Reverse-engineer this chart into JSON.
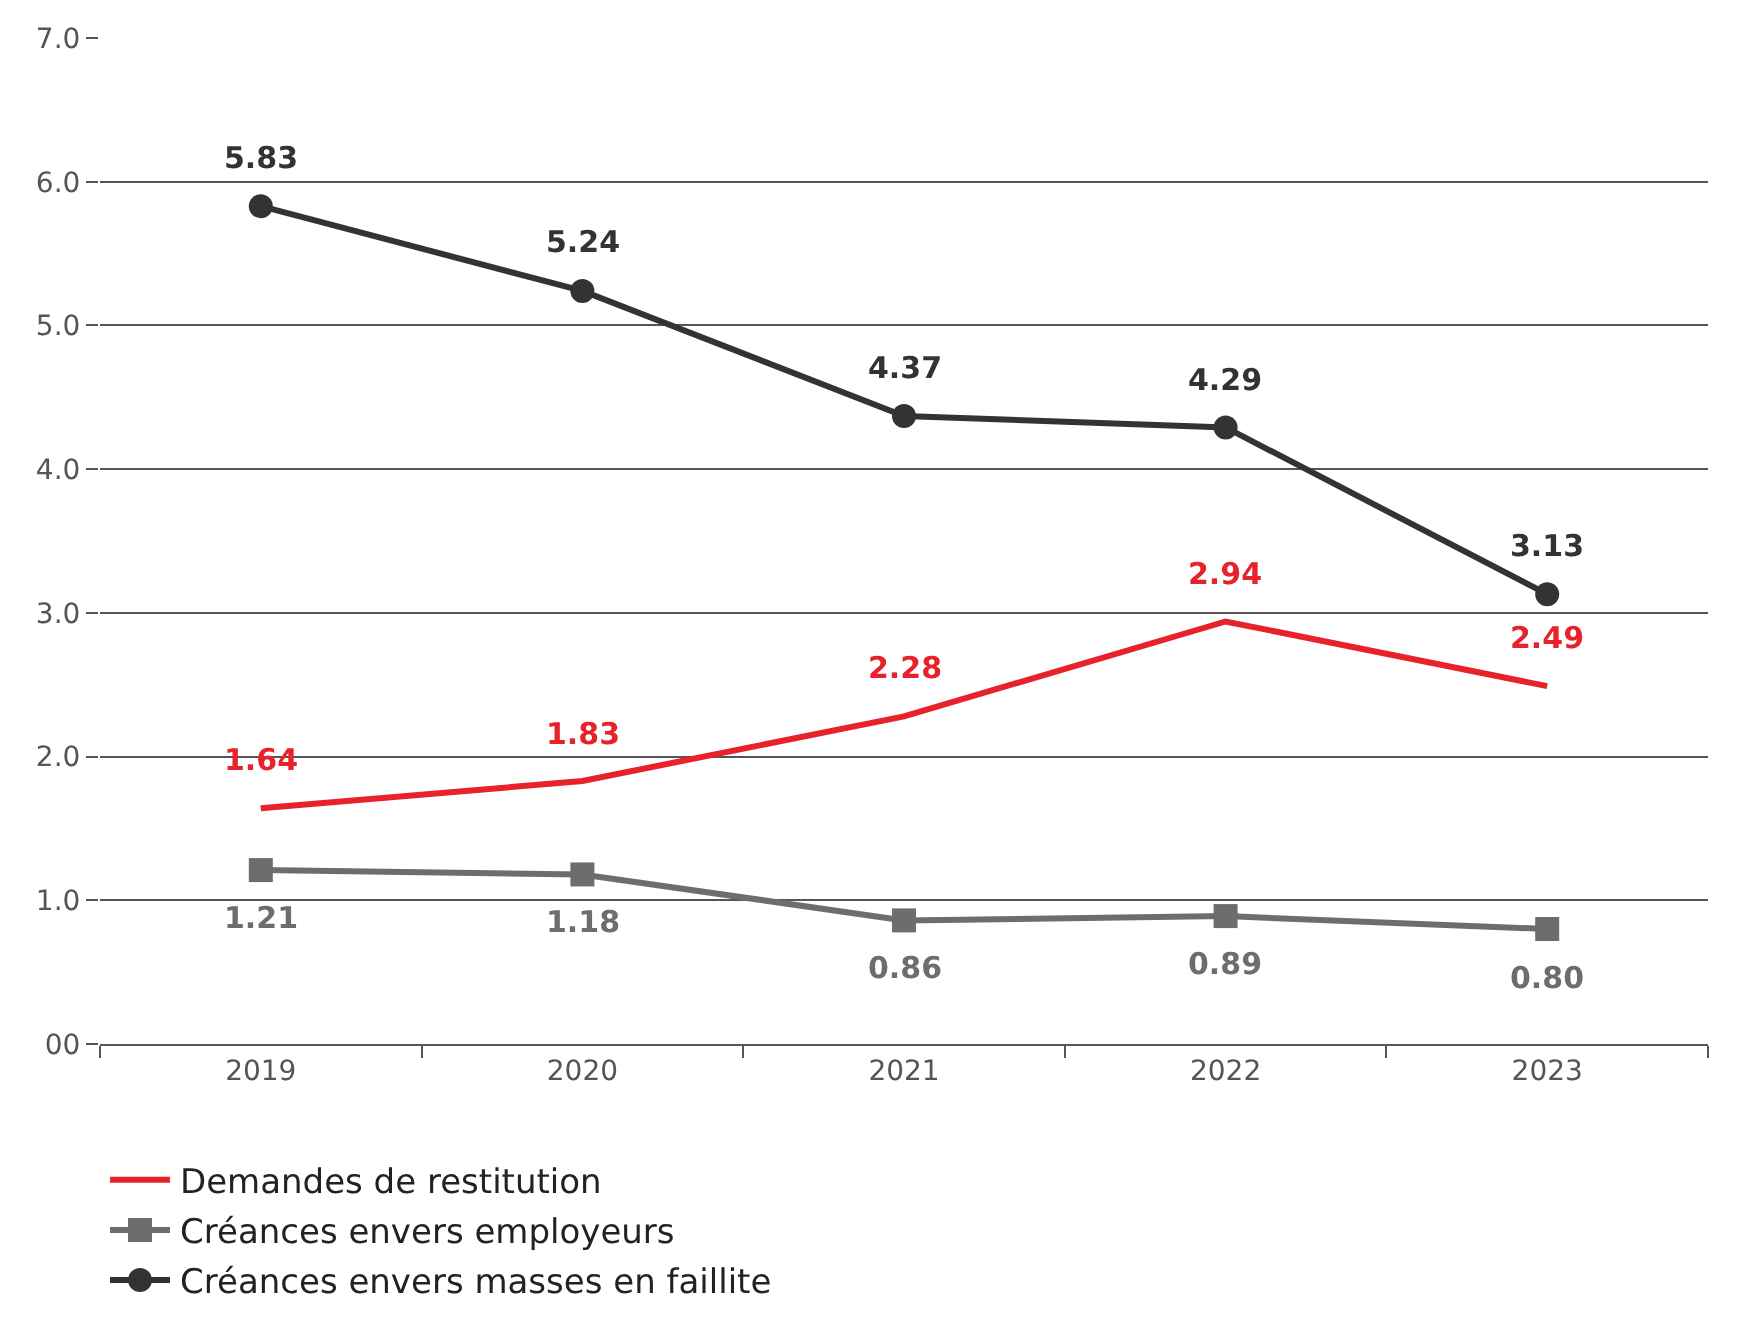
{
  "chart_data": {
    "type": "line",
    "categories": [
      "2019",
      "2020",
      "2021",
      "2022",
      "2023"
    ],
    "series": [
      {
        "name": "Demandes de restitution",
        "color": "#e8222a",
        "marker": "none",
        "values": [
          1.64,
          1.83,
          2.28,
          2.94,
          2.49
        ],
        "value_labels": [
          "1.64",
          "1.83",
          "2.28",
          "2.94",
          "2.49"
        ]
      },
      {
        "name": "Créances envers employeurs",
        "color": "#6d6d6d",
        "marker": "square",
        "values": [
          1.21,
          1.18,
          0.86,
          0.89,
          0.8
        ],
        "value_labels": [
          "1.21",
          "1.18",
          "0.86",
          "0.89",
          "0.80"
        ]
      },
      {
        "name": "Créances envers masses en faillite",
        "color": "#333333",
        "marker": "circle",
        "values": [
          5.83,
          5.24,
          4.37,
          4.29,
          3.13
        ],
        "value_labels": [
          "5.83",
          "5.24",
          "4.37",
          "4.29",
          "3.13"
        ]
      }
    ],
    "ylim": [
      0,
      7
    ],
    "yticks": [
      {
        "value": 0,
        "label": "00"
      },
      {
        "value": 1,
        "label": "1.0"
      },
      {
        "value": 2,
        "label": "2.0"
      },
      {
        "value": 3,
        "label": "3.0"
      },
      {
        "value": 4,
        "label": "4.0"
      },
      {
        "value": 5,
        "label": "5.0"
      },
      {
        "value": 6,
        "label": "6.0"
      },
      {
        "value": 7,
        "label": "7.0"
      }
    ],
    "grid": "y",
    "legend": "bottom"
  }
}
